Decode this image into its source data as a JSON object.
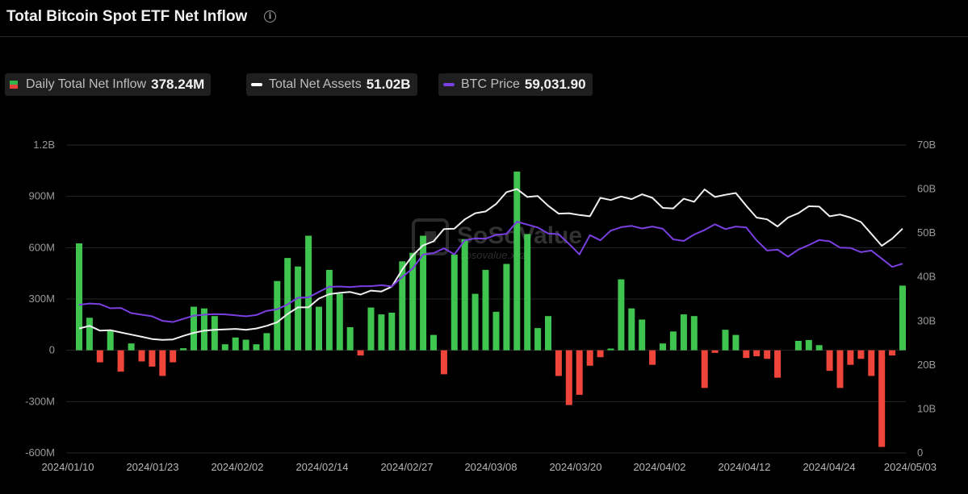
{
  "header": {
    "title": "Total Bitcoin Spot ETF Net Inflow",
    "info_icon": "info-icon"
  },
  "legend": [
    {
      "label": "Daily Total Net Inflow",
      "value": "378.24M",
      "swatch": "inflow"
    },
    {
      "label": "Total Net Assets",
      "value": "51.02B",
      "swatch": "#ffffff"
    },
    {
      "label": "BTC Price",
      "value": "59,031.90",
      "swatch": "#7b3fe4"
    }
  ],
  "watermark": {
    "brand": "SoSoValue",
    "site": "sosovalue.xyz"
  },
  "chart_data": {
    "type": "bar+line",
    "colors": {
      "positive": "#3ec44f",
      "negative": "#f0453a",
      "net_assets": "#f0f0f0",
      "btc_price": "#7a3fe0"
    },
    "grid": true,
    "y_left": {
      "ticks": [
        "1.2B",
        "900M",
        "600M",
        "300M",
        "0",
        "-300M",
        "-600M"
      ],
      "min": -600,
      "max": 1200,
      "unit": "M"
    },
    "y_right": {
      "ticks": [
        "70B",
        "60B",
        "50B",
        "40B",
        "30B",
        "20B",
        "10B",
        "0"
      ],
      "min": 0,
      "max": 70,
      "unit": "B"
    },
    "x_ticks": [
      "2024/01/10",
      "2024/01/23",
      "2024/02/02",
      "2024/02/14",
      "2024/02/27",
      "2024/03/08",
      "2024/03/20",
      "2024/04/02",
      "2024/04/12",
      "2024/04/24",
      "2024/05/03"
    ],
    "series": [
      {
        "name": "Daily Total Net Inflow",
        "kind": "bar",
        "values": [
          625,
          190,
          -70,
          115,
          -125,
          40,
          -65,
          -95,
          -150,
          -70,
          12,
          255,
          245,
          200,
          35,
          75,
          62,
          35,
          100,
          405,
          540,
          490,
          670,
          255,
          470,
          330,
          135,
          -30,
          250,
          210,
          220,
          520,
          570,
          670,
          90,
          -140,
          560,
          650,
          330,
          470,
          225,
          505,
          1045,
          680,
          130,
          200,
          -150,
          -320,
          -260,
          -90,
          -40,
          10,
          415,
          245,
          180,
          -85,
          40,
          110,
          210,
          200,
          -220,
          -15,
          120,
          90,
          -45,
          -35,
          -50,
          -160,
          0,
          55,
          60,
          30,
          -120,
          -220,
          -85,
          -50,
          -150,
          -565,
          -30,
          378
        ]
      },
      {
        "name": "Total Net Assets",
        "kind": "line",
        "values": [
          28.3,
          28.9,
          27.8,
          27.9,
          27.4,
          26.9,
          26.4,
          25.9,
          25.7,
          25.8,
          26.6,
          27.3,
          27.8,
          28.0,
          28.1,
          28.2,
          28.0,
          28.3,
          28.9,
          29.7,
          31.6,
          33.1,
          33.1,
          35.1,
          36.1,
          36.4,
          36.6,
          36.0,
          36.9,
          36.7,
          37.8,
          41.7,
          44.9,
          47.2,
          48.1,
          50.9,
          51.0,
          53.1,
          54.5,
          54.9,
          56.6,
          59.3,
          60.0,
          58.2,
          58.4,
          56.2,
          54.4,
          54.5,
          54.1,
          53.8,
          58.0,
          57.5,
          58.3,
          57.7,
          58.8,
          58.0,
          55.7,
          55.6,
          57.8,
          57.1,
          59.9,
          58.2,
          58.7,
          59.1,
          56.2,
          53.5,
          53.1,
          51.5,
          53.5,
          54.5,
          56.1,
          56.0,
          53.8,
          54.2,
          53.5,
          52.5,
          49.8,
          47.1,
          48.7,
          51.0
        ]
      },
      {
        "name": "BTC Price",
        "kind": "line",
        "values": [
          46200,
          46600,
          46400,
          45100,
          45200,
          43600,
          43100,
          42600,
          41200,
          40800,
          41800,
          42800,
          43100,
          43300,
          43200,
          42900,
          42600,
          43000,
          44300,
          44800,
          46300,
          48400,
          48500,
          50200,
          51800,
          51900,
          51700,
          52000,
          52000,
          52300,
          51900,
          54900,
          57500,
          61900,
          62300,
          63800,
          61900,
          66300,
          66900,
          66800,
          68000,
          68300,
          72100,
          71200,
          70300,
          68400,
          68200,
          65200,
          61900,
          67900,
          66300,
          69300,
          70400,
          70800,
          70000,
          70600,
          69900,
          66600,
          66100,
          68100,
          69500,
          71300,
          69800,
          70600,
          70300,
          66300,
          63100,
          63400,
          61200,
          63400,
          64800,
          66400,
          66000,
          64000,
          63900,
          62600,
          63100,
          60600,
          58000,
          59000
        ]
      }
    ]
  }
}
